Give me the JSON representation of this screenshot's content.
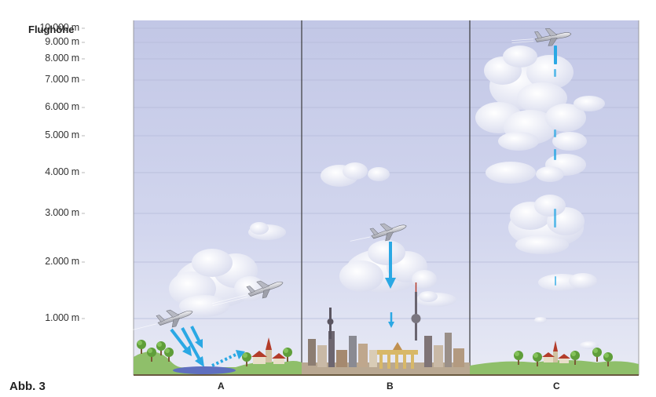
{
  "title": "Flughöhe",
  "figure_label": "Abb. 3",
  "altitude_ticks": [
    {
      "label": "10.000 m",
      "value": 10000
    },
    {
      "label": "9.000 m",
      "value": 9000
    },
    {
      "label": "8.000 m",
      "value": 8000
    },
    {
      "label": "7.000 m",
      "value": 7000
    },
    {
      "label": "6.000 m",
      "value": 6000
    },
    {
      "label": "5.000 m",
      "value": 5000
    },
    {
      "label": "4.000 m",
      "value": 4000
    },
    {
      "label": "3.000 m",
      "value": 3000
    },
    {
      "label": "2.000 m",
      "value": 2000
    },
    {
      "label": "1.000 m",
      "value": 1000
    }
  ],
  "panels": [
    {
      "label": "A"
    },
    {
      "label": "B"
    },
    {
      "label": "C"
    }
  ],
  "colors": {
    "sky_top": "#c4c9e6",
    "sky_bottom": "#e6e8f4",
    "arrow": "#2aa8e4",
    "ground": "#8fbf6a",
    "water": "#6e7ec9",
    "cloud": "#ffffff"
  },
  "icons": [
    "airplane-icon",
    "cloud-icon",
    "tree-icon",
    "city-skyline-icon",
    "tv-tower-icon",
    "church-icon",
    "house-icon",
    "arrow-icon"
  ]
}
